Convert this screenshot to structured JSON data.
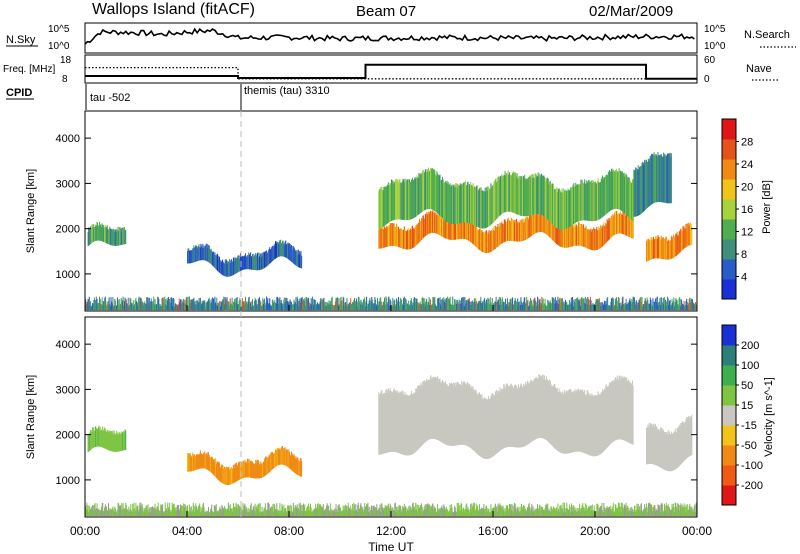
{
  "header": {
    "station": "Wallops Island (fitACF)",
    "beam": "Beam 07",
    "date": "02/Mar/2009"
  },
  "colors": {
    "ground": "#999999",
    "scale_power": [
      "#1a2fd6",
      "#2a5cc7",
      "#3f8f7a",
      "#4fae4f",
      "#a6d23a",
      "#f2c31a",
      "#f08a14",
      "#e5531a",
      "#e01616"
    ],
    "scale_velocity": [
      "#e01616",
      "#f05a14",
      "#f08a14",
      "#f2c31a",
      "#c8c8c0",
      "#7fc544",
      "#3fae4f",
      "#2a7f7a",
      "#1a2fd6"
    ]
  },
  "icons": {
    "dotted-line": "dotted-line-icon"
  },
  "chart_data": [
    {
      "name": "noise-panel",
      "type": "line",
      "left_label": "N.Sky",
      "right_label": "N.Search",
      "left_ticks": [
        "10^5",
        "10^0"
      ],
      "right_ticks": [
        "10^5",
        "10^0"
      ],
      "series": [
        {
          "style": "solid",
          "x": [
            0,
            0.6,
            1,
            2,
            3,
            4,
            5,
            5.8,
            6,
            8,
            10,
            12,
            14,
            16,
            18,
            20,
            22,
            24
          ],
          "y": [
            0.3,
            0.7,
            0.7,
            0.68,
            0.62,
            0.7,
            0.75,
            0.55,
            0.5,
            0.52,
            0.48,
            0.5,
            0.52,
            0.5,
            0.48,
            0.52,
            0.55,
            0.55
          ]
        }
      ]
    },
    {
      "name": "frequency-panel",
      "type": "line",
      "left_label": "Freq. [MHz]",
      "right_label": "Nave",
      "left_ticks": [
        "18",
        "8"
      ],
      "right_ticks": [
        "60",
        "0"
      ],
      "series": [
        {
          "style": "dotted",
          "x": [
            0,
            6,
            6,
            24
          ],
          "y": [
            13.5,
            13.5,
            9.5,
            9.5
          ]
        },
        {
          "style": "solid",
          "x": [
            0,
            6,
            6,
            11,
            11,
            22,
            22,
            24
          ],
          "y": [
            10.5,
            10.5,
            9.8,
            9.8,
            14.5,
            14.5,
            9.5,
            9.5
          ]
        }
      ]
    },
    {
      "name": "cpid-panel",
      "type": "table",
      "label": "CPID",
      "segments": [
        {
          "start": 0,
          "end": 6,
          "text": "tau -502"
        },
        {
          "start": 6,
          "end": 24,
          "text": "themis (tau) 3310"
        }
      ]
    },
    {
      "name": "power-panel",
      "type": "heatmap",
      "quantity": "power",
      "ylabel": "Slant Range [km]",
      "yticks": [
        1000,
        2000,
        3000,
        4000
      ],
      "ylim": [
        180,
        4600
      ],
      "xlim": [
        0,
        24
      ],
      "colorbar": {
        "label": "Power [dB]",
        "ticks": [
          "4",
          "8",
          "12",
          "16",
          "20",
          "24",
          "28"
        ],
        "range": [
          0,
          30
        ]
      },
      "features": [
        {
          "x0": 0.1,
          "x1": 1.6,
          "y0": 1550,
          "y1": 1850,
          "value": 10
        },
        {
          "x0": 4.0,
          "x1": 8.5,
          "y0": 1150,
          "y1": 1420,
          "value": 6
        },
        {
          "x0": 0,
          "x1": 24,
          "y0": 200,
          "y1": 500,
          "value": 8
        },
        {
          "x0": 11.5,
          "x1": 21.5,
          "y0": 1700,
          "y1": 2100,
          "value": 22
        },
        {
          "x0": 11.5,
          "x1": 21.5,
          "y0": 2200,
          "y1": 3000,
          "value": 12
        },
        {
          "x0": 22.0,
          "x1": 23.8,
          "y0": 1400,
          "y1": 1800,
          "value": 22
        },
        {
          "x0": 21.5,
          "x1": 23.0,
          "y0": 2500,
          "y1": 3500,
          "value": 8
        }
      ]
    },
    {
      "name": "velocity-panel",
      "type": "heatmap",
      "quantity": "velocity",
      "ylabel": "Slant Range [km]",
      "yticks": [
        1000,
        2000,
        3000,
        4000
      ],
      "ylim": [
        180,
        4600
      ],
      "xlim": [
        0,
        24
      ],
      "xticks": [
        "00:00",
        "04:00",
        "08:00",
        "12:00",
        "16:00",
        "20:00",
        "00:00"
      ],
      "xlabel": "Time UT",
      "colorbar": {
        "label": "Velocity [m s^-1]",
        "ticks": [
          "-200",
          "-100",
          "-50",
          "-15",
          "15",
          "50",
          "100",
          "200"
        ]
      },
      "features": [
        {
          "x0": 0.1,
          "x1": 1.6,
          "y0": 1550,
          "y1": 1900,
          "value": 40
        },
        {
          "x0": 4.0,
          "x1": 8.5,
          "y0": 1100,
          "y1": 1400,
          "value": -60
        },
        {
          "x0": 0,
          "x1": 24,
          "y0": 200,
          "y1": 500,
          "value": 30
        },
        {
          "x0": 11.5,
          "x1": 21.5,
          "y0": 1700,
          "y1": 3000,
          "value": 0
        },
        {
          "x0": 22.0,
          "x1": 23.8,
          "y0": 1400,
          "y1": 2200,
          "value": 0
        }
      ]
    }
  ]
}
